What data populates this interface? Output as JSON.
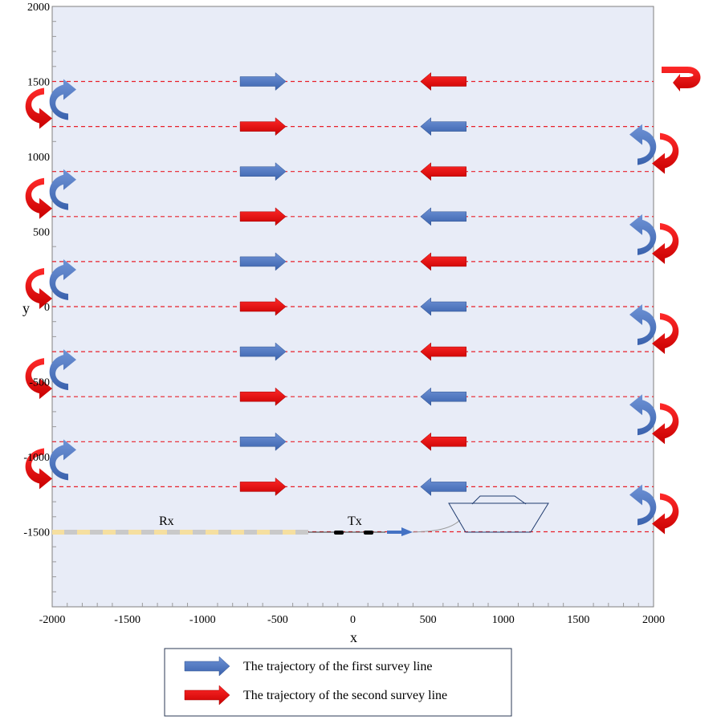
{
  "axes": {
    "x_title": "x",
    "y_title": "y",
    "x_range": [
      -2000,
      2000
    ],
    "y_range": [
      -2000,
      2000
    ],
    "x_ticks": [
      -2000,
      -1500,
      -1000,
      -500,
      0,
      500,
      1000,
      1500,
      2000
    ],
    "y_ticks": [
      2000,
      1500,
      1000,
      500,
      0,
      -500,
      -1000,
      -1500
    ],
    "x_tick_labels": [
      "-2000",
      "-1500",
      "-1000",
      "-500",
      "0",
      "500",
      "1000",
      "1500",
      "2000"
    ],
    "y_tick_labels": [
      "2000",
      "1500",
      "1000",
      "500",
      "0",
      "-500",
      "-1000",
      "-1500"
    ]
  },
  "survey_lines": {
    "y_values": [
      1500,
      1200,
      900,
      600,
      300,
      0,
      -300,
      -600,
      -900,
      -1200,
      -1500
    ],
    "x_start": -2000,
    "x_end": 2000,
    "color": "#e8202a"
  },
  "colors": {
    "first_line": "#4472c4",
    "second_line": "#e01010",
    "plot_bg": "#e8ecf7"
  },
  "devices": {
    "rx_label": "Rx",
    "tx_label": "Tx"
  },
  "legend": {
    "items": [
      {
        "label": "The trajectory of the first survey line",
        "color": "#4472c4"
      },
      {
        "label": "The trajectory of the second survey line",
        "color": "#e01010"
      }
    ]
  }
}
